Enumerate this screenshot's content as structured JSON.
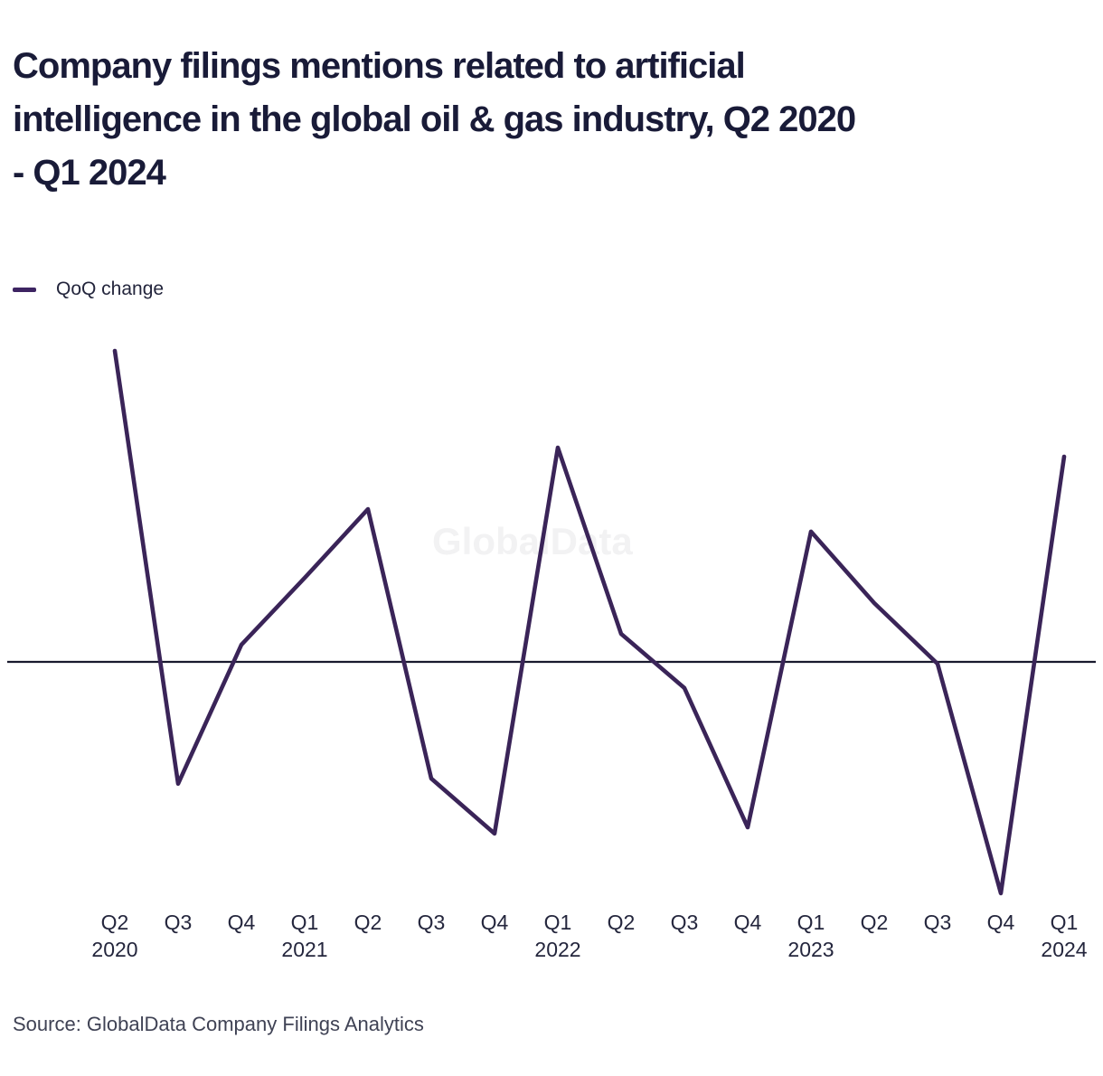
{
  "title": {
    "lines": [
      "Company filings mentions related to artificial",
      "intelligence in the global oil & gas industry, Q2 2020",
      "- Q1 2024"
    ],
    "full_text": "Company filings mentions related to artificial intelligence in the global oil & gas industry, Q2 2020 - Q1 2024"
  },
  "legend": {
    "label": "QoQ change",
    "color": "#3d2462"
  },
  "watermark": "GlobalData",
  "source": "Source: GlobalData Company Filings Analytics",
  "colors": {
    "line": "#3a2458",
    "zero_line": "#191a2e",
    "title_text": "#191b38",
    "axis_text": "#24263d",
    "source_text": "#3f4254",
    "watermark_text": "#f2f2f3"
  },
  "chart_data": {
    "type": "line",
    "title": "Company filings mentions related to artificial intelligence in the global oil & gas industry, Q2 2020 - Q1 2024",
    "categories": [
      "Q2 2020",
      "Q3 2020",
      "Q4 2020",
      "Q1 2021",
      "Q2 2021",
      "Q3 2021",
      "Q4 2021",
      "Q1 2022",
      "Q2 2022",
      "Q3 2022",
      "Q4 2022",
      "Q1 2023",
      "Q2 2023",
      "Q3 2023",
      "Q4 2023",
      "Q1 2024"
    ],
    "x_tick_labels": [
      {
        "quarter": "Q2",
        "year": "2020"
      },
      {
        "quarter": "Q3",
        "year": ""
      },
      {
        "quarter": "Q4",
        "year": ""
      },
      {
        "quarter": "Q1",
        "year": "2021"
      },
      {
        "quarter": "Q2",
        "year": ""
      },
      {
        "quarter": "Q3",
        "year": ""
      },
      {
        "quarter": "Q4",
        "year": ""
      },
      {
        "quarter": "Q1",
        "year": "2022"
      },
      {
        "quarter": "Q2",
        "year": ""
      },
      {
        "quarter": "Q3",
        "year": ""
      },
      {
        "quarter": "Q4",
        "year": ""
      },
      {
        "quarter": "Q1",
        "year": "2023"
      },
      {
        "quarter": "Q2",
        "year": ""
      },
      {
        "quarter": "Q3",
        "year": ""
      },
      {
        "quarter": "Q4",
        "year": ""
      },
      {
        "quarter": "Q1",
        "year": "2024"
      }
    ],
    "series": [
      {
        "name": "QoQ change",
        "color": "#3a2458",
        "values": [
          100,
          -39.2,
          5.5,
          27.0,
          49.1,
          -37.5,
          -55.2,
          68.9,
          9.0,
          -8.4,
          -53.2,
          41.9,
          18.9,
          -0.6,
          -74.4,
          66.0
        ]
      }
    ],
    "xlabel": "",
    "ylabel": "",
    "y_axis_labeled": false,
    "values_note": "Relative QoQ change estimated from plot; y-axis is unlabeled in source, zero baseline shown",
    "zero_baseline": true,
    "grid": false,
    "legend_position": "top-left",
    "ylim": [
      -85,
      110
    ]
  }
}
